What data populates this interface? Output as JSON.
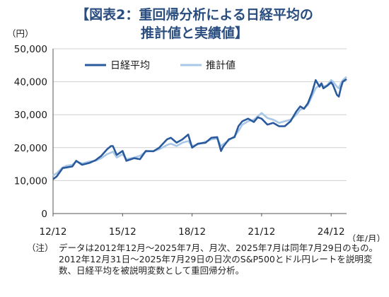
{
  "title_line1": "【図表2：重回帰分析による日経平均の",
  "title_line2": "推計値と実績値】",
  "note_label": "（注）",
  "note_text": "データは2012年12月～2025年7月、月次、2025年7月は同年7月29日のもの。2012年12月31日～2025年7月29日の日次のS&P500とドル円レートを説明変数、日経平均を被説明変数として重回帰分析。",
  "chart_data": {
    "type": "line",
    "ylabel": "（円）",
    "xlabel": "（年/月）",
    "ylim": [
      0,
      50000
    ],
    "yticks": [
      0,
      10000,
      20000,
      30000,
      40000,
      50000
    ],
    "ytick_labels": [
      "0",
      "10,000",
      "20,000",
      "30,000",
      "40,000",
      "50,000"
    ],
    "xlim": [
      2012.917,
      2025.583
    ],
    "xticks": [
      2012.917,
      2015.917,
      2018.917,
      2021.917,
      2024.917
    ],
    "xtick_labels": [
      "12/12",
      "15/12",
      "18/12",
      "21/12",
      "24/12"
    ],
    "grid": "horizontal",
    "legend_position": "top-left",
    "series": [
      {
        "name": "日経平均",
        "color": "#2a5a9e",
        "x": [
          2012.917,
          2013.083,
          2013.333,
          2013.5,
          2013.75,
          2013.917,
          2014.167,
          2014.5,
          2014.75,
          2015.0,
          2015.25,
          2015.417,
          2015.5,
          2015.667,
          2015.917,
          2016.083,
          2016.417,
          2016.667,
          2016.917,
          2017.25,
          2017.5,
          2017.833,
          2018.0,
          2018.25,
          2018.5,
          2018.75,
          2018.917,
          2019.167,
          2019.5,
          2019.75,
          2020.0,
          2020.167,
          2020.25,
          2020.5,
          2020.75,
          2020.917,
          2021.083,
          2021.333,
          2021.583,
          2021.75,
          2021.917,
          2022.167,
          2022.417,
          2022.667,
          2022.917,
          2023.167,
          2023.417,
          2023.583,
          2023.75,
          2023.917,
          2024.083,
          2024.25,
          2024.417,
          2024.5,
          2024.583,
          2024.75,
          2024.917,
          2025.0,
          2025.167,
          2025.25,
          2025.333,
          2025.417,
          2025.583
        ],
        "values": [
          10400,
          11300,
          13800,
          14000,
          14300,
          16000,
          14800,
          15400,
          16200,
          17500,
          19500,
          20500,
          20500,
          17800,
          19000,
          16000,
          16800,
          16500,
          19000,
          18900,
          20000,
          22500,
          23000,
          21500,
          22500,
          24000,
          20000,
          21200,
          21500,
          23000,
          23200,
          19000,
          20200,
          22500,
          23200,
          26500,
          28000,
          28800,
          27800,
          29200,
          28800,
          27000,
          27500,
          26500,
          26500,
          28000,
          31000,
          32500,
          31800,
          33500,
          36500,
          40500,
          38500,
          39500,
          38000,
          38800,
          39800,
          39000,
          36000,
          35500,
          38000,
          40000,
          40800
        ]
      },
      {
        "name": "推計値",
        "color": "#a9c7e6",
        "x": [
          2012.917,
          2013.083,
          2013.333,
          2013.5,
          2013.75,
          2013.917,
          2014.167,
          2014.5,
          2014.75,
          2015.0,
          2015.25,
          2015.417,
          2015.5,
          2015.667,
          2015.917,
          2016.083,
          2016.417,
          2016.667,
          2016.917,
          2017.25,
          2017.5,
          2017.833,
          2018.0,
          2018.25,
          2018.5,
          2018.75,
          2018.917,
          2019.167,
          2019.5,
          2019.75,
          2020.0,
          2020.167,
          2020.25,
          2020.5,
          2020.75,
          2020.917,
          2021.083,
          2021.333,
          2021.583,
          2021.75,
          2021.917,
          2022.167,
          2022.417,
          2022.667,
          2022.917,
          2023.167,
          2023.417,
          2023.583,
          2023.75,
          2023.917,
          2024.083,
          2024.25,
          2024.417,
          2024.5,
          2024.583,
          2024.75,
          2024.917,
          2025.0,
          2025.167,
          2025.25,
          2025.333,
          2025.417,
          2025.583
        ],
        "values": [
          11500,
          12300,
          14000,
          14500,
          14800,
          15800,
          15200,
          15800,
          16000,
          16800,
          18000,
          18500,
          18800,
          17000,
          18000,
          16500,
          17000,
          17500,
          18800,
          19000,
          19500,
          20800,
          21200,
          20500,
          21500,
          22000,
          20500,
          21000,
          21800,
          22500,
          22800,
          20500,
          21000,
          22200,
          23500,
          25000,
          27000,
          28000,
          28500,
          29500,
          30500,
          29000,
          28500,
          27500,
          28000,
          28500,
          30000,
          31500,
          32000,
          33000,
          35500,
          38000,
          39000,
          39500,
          38500,
          39000,
          40500,
          40000,
          38500,
          38000,
          39500,
          40500,
          41500
        ]
      }
    ]
  }
}
